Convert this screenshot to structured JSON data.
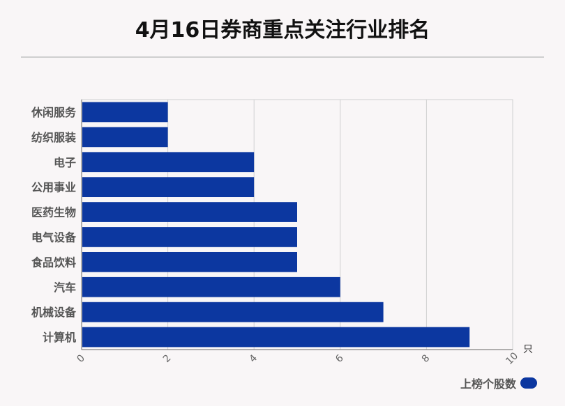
{
  "title": "4月16日券商重点关注行业排名",
  "colors": {
    "bar": "#0c37a0",
    "background": "#f9f6f7"
  },
  "chart_data": {
    "type": "bar",
    "orientation": "horizontal",
    "categories": [
      "休闲服务",
      "纺织服装",
      "电子",
      "公用事业",
      "医药生物",
      "电气设备",
      "食品饮料",
      "汽车",
      "机械设备",
      "计算机"
    ],
    "series": [
      {
        "name": "上榜个股数",
        "values": [
          2,
          2,
          4,
          4,
          5,
          5,
          5,
          6,
          7,
          9
        ]
      }
    ],
    "xlim": [
      0,
      10
    ],
    "x_ticks": [
      "0",
      "2",
      "4",
      "6",
      "8",
      "10"
    ],
    "x_unit": "只",
    "grid": true,
    "legend_position": "bottom-right"
  }
}
